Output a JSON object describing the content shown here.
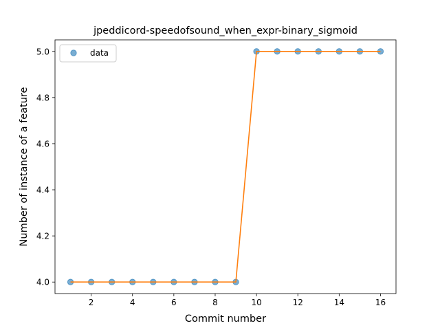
{
  "chart_data": {
    "type": "line",
    "title": "jpeddicord-speedofsound_when_expr-binary_sigmoid",
    "xlabel": "Commit number",
    "ylabel": "Number of instance of a feature",
    "x": [
      1,
      2,
      3,
      4,
      5,
      6,
      7,
      8,
      9,
      10,
      11,
      12,
      13,
      14,
      15,
      16
    ],
    "series": [
      {
        "name": "data",
        "style": "markers",
        "color": "#1f77b4",
        "values": [
          4.0,
          4.0,
          4.0,
          4.0,
          4.0,
          4.0,
          4.0,
          4.0,
          4.0,
          5.0,
          5.0,
          5.0,
          5.0,
          5.0,
          5.0,
          5.0
        ]
      },
      {
        "style": "line",
        "color": "#ff7f0e",
        "values": [
          4.0,
          4.0,
          4.0,
          4.0,
          4.0,
          4.0,
          4.0,
          4.0,
          4.0,
          5.0,
          5.0,
          5.0,
          5.0,
          5.0,
          5.0,
          5.0
        ]
      }
    ],
    "xlim": [
      0.25,
      16.75
    ],
    "ylim": [
      3.95,
      5.05
    ],
    "xticks": [
      2,
      4,
      6,
      8,
      10,
      12,
      14,
      16
    ],
    "xtick_labels": [
      "2",
      "4",
      "6",
      "8",
      "10",
      "12",
      "14",
      "16"
    ],
    "yticks": [
      4.0,
      4.2,
      4.4,
      4.6,
      4.8,
      5.0
    ],
    "ytick_labels": [
      "4.0",
      "4.2",
      "4.4",
      "4.6",
      "4.8",
      "5.0"
    ],
    "grid": false,
    "legend": {
      "position": "top-left",
      "entries": [
        "data"
      ]
    }
  }
}
